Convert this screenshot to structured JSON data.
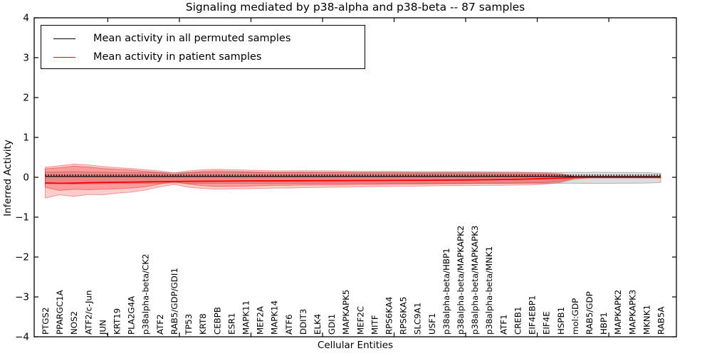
{
  "figure": {
    "title": "Signaling mediated by p38-alpha and p38-beta -- 87 samples",
    "xlabel": "Cellular Entities",
    "ylabel": "Inferred Activity",
    "background": "#ffffff",
    "frame_color": "#000000",
    "legend_items": [
      {
        "label": "Mean activity in all permuted samples",
        "color": "#000000"
      },
      {
        "label": "Mean activity in patient samples",
        "color": "#ff0000"
      }
    ]
  },
  "chart_data": {
    "type": "line",
    "title": "Signaling mediated by p38-alpha and p38-beta -- 87 samples",
    "xlabel": "Cellular Entities",
    "ylabel": "Inferred Activity",
    "ylim": [
      -4,
      4
    ],
    "yticks": [
      4,
      3,
      2,
      1,
      0,
      -1,
      -2,
      -3,
      -4
    ],
    "grid": false,
    "legend_position": "upper left",
    "x_tick_label_rotation": 90,
    "categories": [
      "PTGS2",
      "PPARGC1A",
      "NOS2",
      "ATF2/c-Jun",
      "JUN",
      "KRT19",
      "PLA2G4A",
      "p38alpha-beta/CK2",
      "ATF2",
      "RAB5/GDP/GDI1",
      "TP53",
      "KRT8",
      "CEBPB",
      "ESR1",
      "MAPK11",
      "MEF2A",
      "MAPK14",
      "ATF6",
      "DDIT3",
      "ELK4",
      "GDI1",
      "MAPKAPK5",
      "MEF2C",
      "MITF",
      "RPS6KA4",
      "RPS6KA5",
      "SLC9A1",
      "USF1",
      "p38alpha-beta/HBP1",
      "p38alpha-beta/MAPKAPK2",
      "p38alpha-beta/MAPKAPK3",
      "p38alpha-beta/MNK1",
      "ATF1",
      "CREB1",
      "EIF4EBP1",
      "EIF4E",
      "HSPB1",
      "mol:GDP",
      "RAB5/GDP",
      "HBP1",
      "MAPKAPK2",
      "MAPKAPK3",
      "MKNK1",
      "RAB5A"
    ],
    "series": [
      {
        "name": "Mean activity in all permuted samples",
        "color": "#000000",
        "style": "solid",
        "width": 1.2,
        "constant": 0.02
      },
      {
        "name": "permuted-mean-dotted-overlay",
        "color": "#000000",
        "style": "dotted",
        "width": 1.6,
        "constant": 0.055
      },
      {
        "name": "Mean activity in patient samples",
        "color": "#ff0000",
        "style": "solid",
        "width": 1.8,
        "values": [
          -0.14,
          -0.15,
          -0.145,
          -0.135,
          -0.13,
          -0.125,
          -0.12,
          -0.115,
          -0.11,
          -0.105,
          -0.1,
          -0.098,
          -0.096,
          -0.094,
          -0.092,
          -0.09,
          -0.09,
          -0.088,
          -0.086,
          -0.085,
          -0.084,
          -0.082,
          -0.08,
          -0.08,
          -0.078,
          -0.076,
          -0.075,
          -0.073,
          -0.07,
          -0.068,
          -0.065,
          -0.06,
          -0.055,
          -0.05,
          -0.04,
          -0.03,
          -0.02,
          -0.006,
          -0.005,
          -0.005,
          -0.005,
          -0.005,
          -0.005,
          -0.005
        ]
      }
    ],
    "bands": [
      {
        "name": "permuted-samples-band",
        "fill": "rgba(125,125,125,0.26)",
        "edge": "rgba(105,105,105,0.45)",
        "upper": [
          0.13,
          0.13,
          0.14,
          0.13,
          0.13,
          0.12,
          0.12,
          0.12,
          0.12,
          0.11,
          0.12,
          0.12,
          0.12,
          0.12,
          0.12,
          0.12,
          0.12,
          0.12,
          0.12,
          0.12,
          0.12,
          0.12,
          0.12,
          0.12,
          0.12,
          0.12,
          0.12,
          0.12,
          0.12,
          0.12,
          0.12,
          0.12,
          0.12,
          0.12,
          0.12,
          0.12,
          0.12,
          0.12,
          0.125,
          0.125,
          0.12,
          0.12,
          0.115,
          0.1
        ],
        "lower": [
          -0.16,
          -0.16,
          -0.17,
          -0.16,
          -0.16,
          -0.15,
          -0.15,
          -0.15,
          -0.15,
          -0.14,
          -0.15,
          -0.15,
          -0.15,
          -0.15,
          -0.15,
          -0.15,
          -0.15,
          -0.15,
          -0.15,
          -0.15,
          -0.15,
          -0.15,
          -0.15,
          -0.15,
          -0.15,
          -0.15,
          -0.15,
          -0.15,
          -0.15,
          -0.15,
          -0.15,
          -0.15,
          -0.15,
          -0.15,
          -0.15,
          -0.15,
          -0.15,
          -0.15,
          -0.155,
          -0.155,
          -0.15,
          -0.15,
          -0.145,
          -0.13
        ]
      },
      {
        "name": "patient-samples-band-outer",
        "fill": "rgba(255,0,0,0.20)",
        "edge": "rgba(222,30,30,0.40)",
        "upper": [
          0.25,
          0.29,
          0.33,
          0.31,
          0.27,
          0.24,
          0.22,
          0.19,
          0.16,
          0.11,
          0.16,
          0.19,
          0.2,
          0.19,
          0.18,
          0.17,
          0.16,
          0.16,
          0.165,
          0.16,
          0.16,
          0.155,
          0.15,
          0.15,
          0.15,
          0.145,
          0.14,
          0.14,
          0.14,
          0.14,
          0.14,
          0.135,
          0.13,
          0.13,
          0.12,
          0.11,
          0.09,
          0.02,
          0.006,
          0.006,
          0.006,
          0.006,
          0.006,
          0.006
        ],
        "lower": [
          -0.52,
          -0.44,
          -0.48,
          -0.43,
          -0.44,
          -0.4,
          -0.37,
          -0.32,
          -0.24,
          -0.18,
          -0.25,
          -0.28,
          -0.3,
          -0.29,
          -0.285,
          -0.28,
          -0.27,
          -0.27,
          -0.26,
          -0.255,
          -0.25,
          -0.245,
          -0.24,
          -0.235,
          -0.23,
          -0.225,
          -0.22,
          -0.215,
          -0.21,
          -0.21,
          -0.205,
          -0.2,
          -0.2,
          -0.195,
          -0.19,
          -0.17,
          -0.13,
          -0.04,
          -0.015,
          -0.015,
          -0.015,
          -0.015,
          -0.015,
          -0.015
        ]
      },
      {
        "name": "patient-samples-band-inner",
        "fill": "rgba(255,0,0,0.24)",
        "edge": "rgba(222,30,30,0.45)",
        "upper": [
          0.21,
          0.24,
          0.28,
          0.26,
          0.22,
          0.2,
          0.18,
          0.15,
          0.12,
          0.06,
          0.12,
          0.15,
          0.16,
          0.15,
          0.14,
          0.13,
          0.12,
          0.12,
          0.125,
          0.12,
          0.12,
          0.115,
          0.11,
          0.11,
          0.11,
          0.105,
          0.1,
          0.1,
          0.1,
          0.1,
          0.1,
          0.095,
          0.09,
          0.09,
          0.085,
          0.08,
          0.06,
          0.01,
          0.003,
          0.003,
          0.003,
          0.003,
          0.003,
          0.003
        ],
        "lower": [
          -0.25,
          -0.33,
          -0.3,
          -0.31,
          -0.3,
          -0.29,
          -0.27,
          -0.24,
          -0.17,
          -0.11,
          -0.17,
          -0.21,
          -0.23,
          -0.225,
          -0.22,
          -0.21,
          -0.2,
          -0.2,
          -0.195,
          -0.19,
          -0.19,
          -0.185,
          -0.18,
          -0.18,
          -0.175,
          -0.17,
          -0.17,
          -0.165,
          -0.16,
          -0.16,
          -0.155,
          -0.15,
          -0.15,
          -0.145,
          -0.14,
          -0.13,
          -0.1,
          -0.02,
          -0.01,
          -0.01,
          -0.01,
          -0.01,
          -0.01,
          -0.01
        ]
      }
    ]
  }
}
